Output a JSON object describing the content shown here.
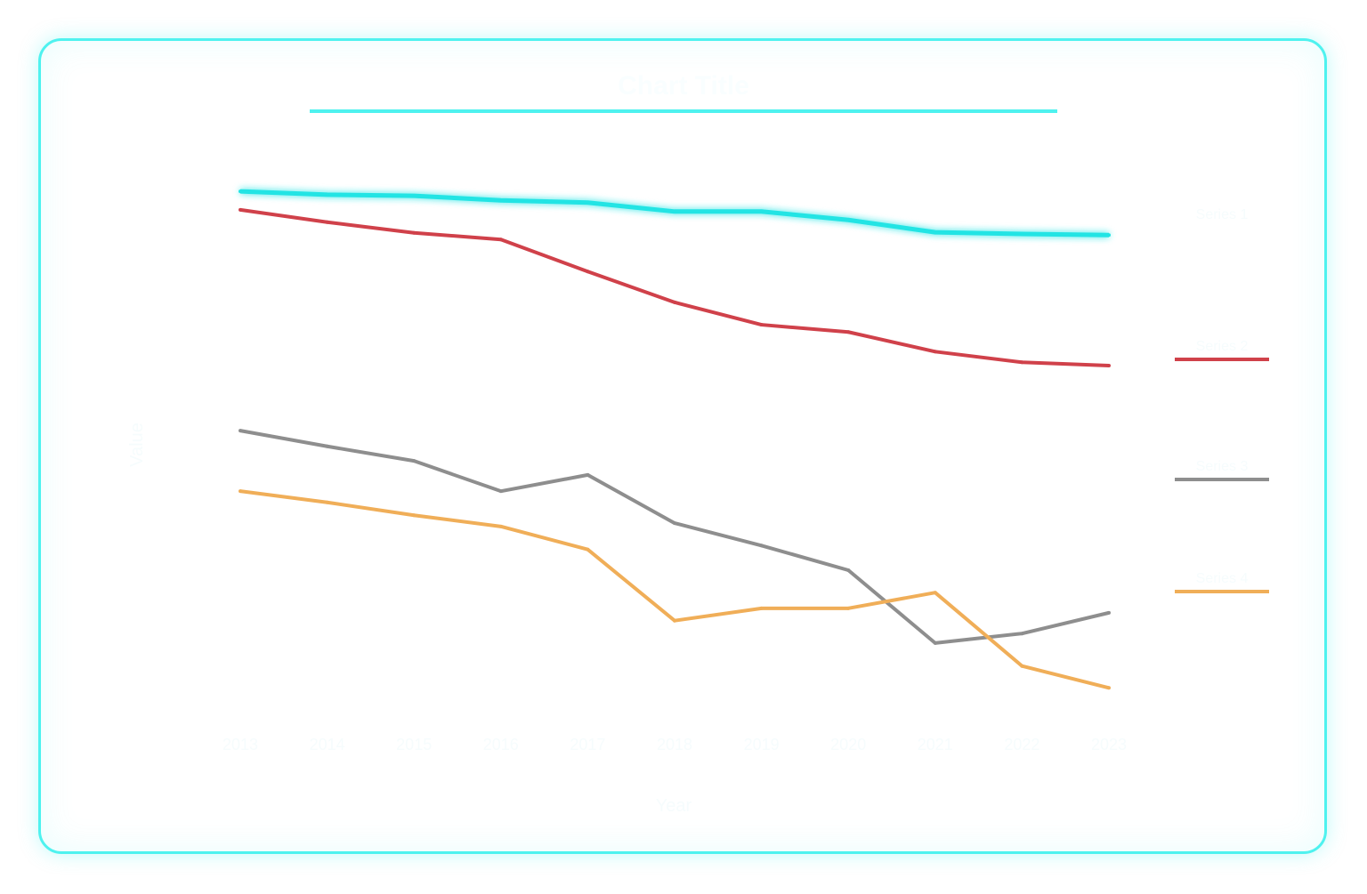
{
  "chart_data": {
    "type": "line",
    "title": "Chart Title",
    "xlabel": "Year",
    "ylabel": "Value",
    "x": [
      "2013",
      "2014",
      "2015",
      "2016",
      "2017",
      "2018",
      "2019",
      "2020",
      "2021",
      "2022",
      "2023"
    ],
    "ylim": [
      0,
      100
    ],
    "grid": false,
    "legend_placement": "right",
    "series": [
      {
        "name": "Series 1",
        "color": "#22e4e4",
        "glow": true,
        "values": [
          97.6,
          97.0,
          96.8,
          96.0,
          95.6,
          94.0,
          94.0,
          92.5,
          90.3,
          90.0,
          89.8
        ]
      },
      {
        "name": "Series 2",
        "color": "#d0414a",
        "values": [
          94.3,
          92.1,
          90.2,
          89.0,
          83.3,
          77.8,
          73.8,
          72.5,
          69.0,
          67.1,
          66.5
        ]
      },
      {
        "name": "Series 3",
        "color": "#8e8e8e",
        "values": [
          54.9,
          52.1,
          49.5,
          44.1,
          47.0,
          38.4,
          34.4,
          30.0,
          17.0,
          18.7,
          22.4
        ]
      },
      {
        "name": "Series 4",
        "color": "#f0ae58",
        "values": [
          44.1,
          42.1,
          39.8,
          37.8,
          33.7,
          21.0,
          23.2,
          23.2,
          26.0,
          12.9,
          9.0
        ]
      }
    ]
  }
}
